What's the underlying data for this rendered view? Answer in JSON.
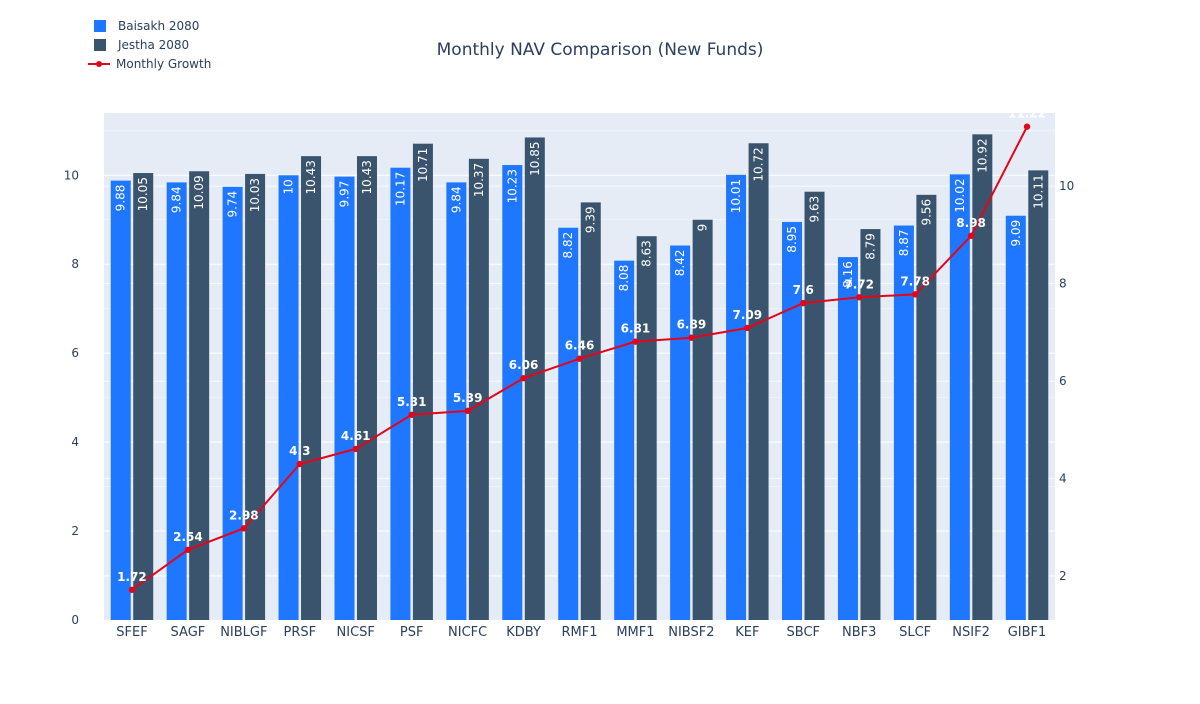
{
  "chart_data": {
    "type": "bar",
    "title": "Monthly NAV Comparison (New Funds)",
    "categories": [
      "SFEF",
      "SAGF",
      "NIBLGF",
      "PRSF",
      "NICSF",
      "PSF",
      "NICFC",
      "KDBY",
      "RMF1",
      "MMF1",
      "NIBSF2",
      "KEF",
      "SBCF",
      "NBF3",
      "SLCF",
      "NSIF2",
      "GIBF1"
    ],
    "series": [
      {
        "name": "Baisakh 2080",
        "type": "bar",
        "axis": "left",
        "color": "#1f77ff",
        "values": [
          9.88,
          9.84,
          9.74,
          10,
          9.97,
          10.17,
          9.84,
          10.23,
          8.82,
          8.08,
          8.42,
          10.01,
          8.95,
          8.16,
          8.87,
          10.02,
          9.09
        ],
        "labels": [
          "9.88",
          "9.84",
          "9.74",
          "10",
          "9.97",
          "10.17",
          "9.84",
          "10.23",
          "8.82",
          "8.08",
          "8.42",
          "10.01",
          "8.95",
          "8.16",
          "8.87",
          "10.02",
          "9.09"
        ]
      },
      {
        "name": "Jestha 2080",
        "type": "bar",
        "axis": "left",
        "color": "#3b546e",
        "values": [
          10.05,
          10.09,
          10.03,
          10.43,
          10.43,
          10.71,
          10.37,
          10.85,
          9.39,
          8.63,
          9,
          10.72,
          9.63,
          8.79,
          9.56,
          10.92,
          10.11
        ],
        "labels": [
          "10.05",
          "10.09",
          "10.03",
          "10.43",
          "10.43",
          "10.71",
          "10.37",
          "10.85",
          "9.39",
          "8.63",
          "9",
          "10.72",
          "9.63",
          "8.79",
          "9.56",
          "10.92",
          "10.11"
        ]
      },
      {
        "name": "Monthly Growth",
        "type": "line",
        "axis": "right",
        "color": "#e3061b",
        "values": [
          1.72,
          2.54,
          2.98,
          4.3,
          4.61,
          5.31,
          5.39,
          6.06,
          6.46,
          6.81,
          6.89,
          7.09,
          7.6,
          7.72,
          7.78,
          8.98,
          11.22
        ],
        "labels": [
          "1.72",
          "2.54",
          "2.98",
          "4.3",
          "4.61",
          "5.31",
          "5.39",
          "6.06",
          "6.46",
          "6.81",
          "6.89",
          "7.09",
          "7.6",
          "7.72",
          "7.78",
          "8.98",
          "11.22"
        ]
      }
    ],
    "y_left": {
      "range": [
        0,
        11.4
      ],
      "ticks": [
        0,
        2,
        4,
        6,
        8,
        10
      ],
      "tick_labels": [
        "0",
        "2",
        "4",
        "6",
        "8",
        "10"
      ]
    },
    "y_right": {
      "range": [
        1.1,
        11.5
      ],
      "ticks": [
        2,
        4,
        6,
        8,
        10
      ],
      "tick_labels": [
        "2",
        "4",
        "6",
        "8",
        "10"
      ]
    },
    "grid": true,
    "legend_position": "top-left",
    "colors": {
      "plot_bg": "#e5ecf6",
      "grid": "#ffffff",
      "text": "#2a3f5f"
    }
  }
}
